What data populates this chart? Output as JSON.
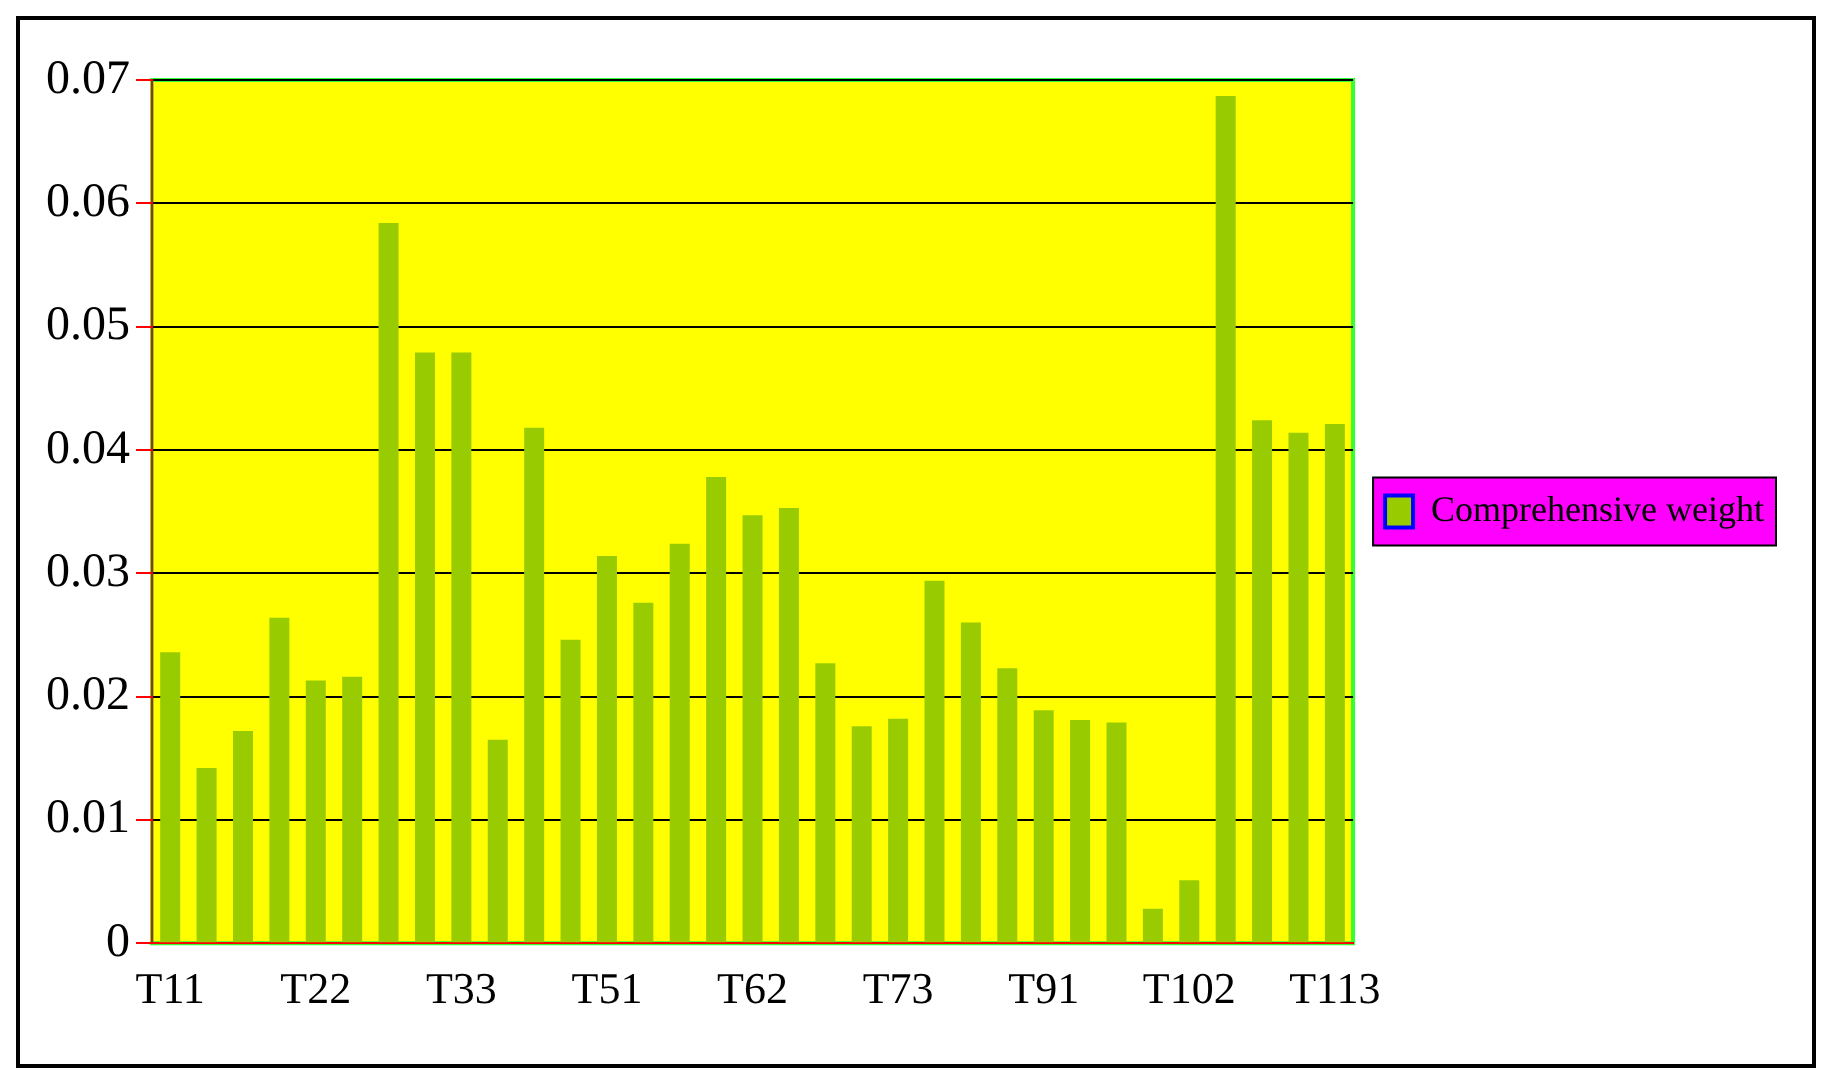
{
  "chart_data": {
    "type": "bar",
    "categories": [
      "T11",
      null,
      null,
      null,
      "T22",
      null,
      null,
      null,
      "T33",
      null,
      null,
      null,
      "T51",
      null,
      null,
      null,
      "T62",
      null,
      null,
      null,
      "T73",
      null,
      null,
      null,
      "T91",
      null,
      null,
      null,
      "T102",
      null,
      null,
      null,
      "T113"
    ],
    "series": [
      {
        "name": "Comprehensive weight",
        "color": "#99cc00",
        "values": [
          0.0236,
          0.0142,
          0.0172,
          0.0264,
          0.0213,
          0.0216,
          0.0584,
          0.0479,
          0.0479,
          0.0165,
          0.0418,
          0.0246,
          0.0314,
          0.0276,
          0.0324,
          0.0378,
          0.0347,
          0.0353,
          0.0227,
          0.0176,
          0.0182,
          0.0294,
          0.026,
          0.0223,
          0.0189,
          0.0181,
          0.0179,
          0.0028,
          0.0051,
          0.0687,
          0.0424,
          0.0414,
          0.0421
        ]
      }
    ],
    "ylim": [
      0,
      0.07
    ],
    "yticks": [
      0,
      0.01,
      0.02,
      0.03,
      0.04,
      0.05,
      0.06,
      0.07
    ],
    "grid": "y",
    "legend": "right"
  }
}
